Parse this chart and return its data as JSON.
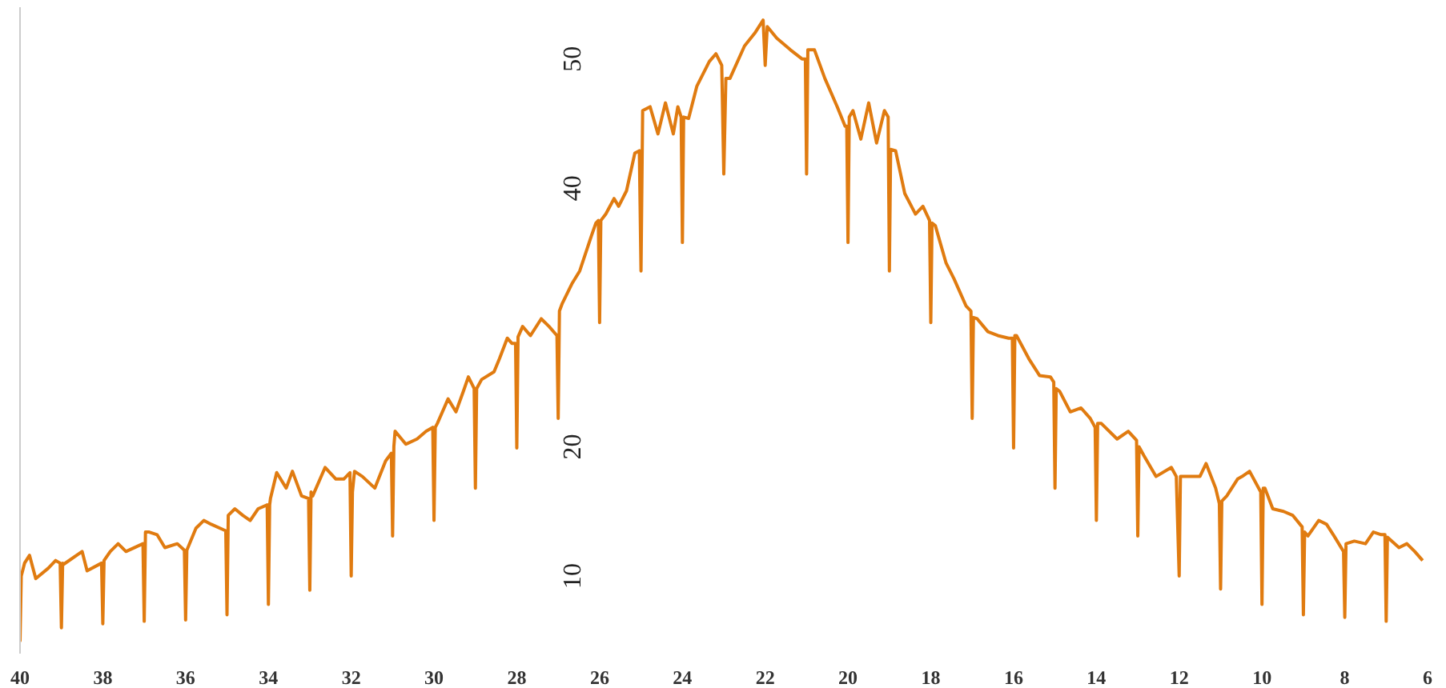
{
  "chart_data": {
    "type": "line",
    "color": "#e07b10",
    "xlim": [
      40,
      6
    ],
    "xticks": [
      40,
      38,
      36,
      34,
      32,
      30,
      28,
      26,
      24,
      22,
      20,
      18,
      16,
      14,
      12,
      10,
      8,
      6
    ],
    "ylim": [
      4,
      54
    ],
    "yticks": [
      10,
      20,
      40,
      50
    ],
    "x": [
      40.0,
      40.0,
      39.97,
      39.89,
      39.77,
      39.62,
      39.32,
      39.14,
      39.03,
      39.0,
      38.97,
      38.95,
      38.5,
      38.38,
      38.03,
      38.0,
      37.97,
      37.82,
      37.63,
      37.44,
      37.03,
      37.0,
      36.97,
      36.88,
      36.69,
      36.5,
      36.2,
      36.03,
      36.0,
      35.97,
      35.75,
      35.56,
      35.38,
      35.03,
      35.0,
      34.97,
      34.81,
      34.62,
      34.44,
      34.25,
      34.03,
      34.0,
      33.97,
      33.95,
      33.8,
      33.57,
      33.42,
      33.2,
      33.03,
      33.0,
      32.97,
      32.93,
      32.63,
      32.37,
      32.18,
      32.03,
      32.0,
      31.97,
      31.92,
      31.73,
      31.43,
      31.17,
      31.03,
      31.0,
      30.97,
      30.94,
      30.68,
      30.41,
      30.19,
      30.03,
      30.0,
      29.97,
      29.92,
      29.66,
      29.47,
      29.29,
      29.17,
      29.03,
      29.0,
      28.97,
      28.85,
      28.55,
      28.42,
      28.23,
      28.12,
      28.03,
      28.0,
      27.97,
      27.86,
      27.67,
      27.41,
      27.22,
      27.03,
      27.0,
      26.97,
      26.9,
      26.67,
      26.48,
      26.2,
      26.09,
      26.03,
      26.0,
      25.97,
      25.85,
      25.65,
      25.54,
      25.35,
      25.15,
      25.04,
      25.0,
      24.96,
      24.78,
      24.59,
      24.41,
      24.22,
      24.11,
      24.03,
      24.0,
      23.97,
      23.85,
      23.65,
      23.35,
      23.19,
      23.05,
      23.0,
      22.95,
      22.85,
      22.5,
      22.25,
      22.05,
      22.0,
      21.95,
      21.72,
      21.39,
      21.11,
      21.03,
      21.0,
      20.97,
      20.81,
      20.56,
      20.26,
      20.07,
      20.03,
      20.0,
      19.97,
      19.88,
      19.69,
      19.5,
      19.31,
      19.12,
      19.03,
      19.0,
      18.97,
      18.85,
      18.63,
      18.37,
      18.19,
      18.03,
      18.0,
      17.97,
      17.89,
      17.63,
      17.44,
      17.15,
      17.03,
      17.0,
      16.97,
      16.88,
      16.62,
      16.38,
      16.12,
      16.03,
      16.0,
      15.97,
      15.93,
      15.63,
      15.37,
      15.11,
      15.03,
      15.0,
      14.97,
      14.89,
      14.63,
      14.37,
      14.15,
      14.03,
      14.0,
      13.97,
      13.88,
      13.5,
      13.23,
      13.03,
      13.0,
      12.97,
      12.85,
      12.56,
      12.19,
      12.07,
      12.0,
      11.97,
      11.81,
      11.5,
      11.35,
      11.12,
      11.03,
      11.0,
      10.97,
      10.85,
      10.59,
      10.48,
      10.3,
      10.03,
      10.0,
      9.97,
      9.93,
      9.74,
      9.48,
      9.26,
      9.03,
      9.0,
      8.97,
      8.89,
      8.63,
      8.44,
      8.26,
      8.03,
      8.0,
      7.97,
      7.77,
      7.5,
      7.31,
      7.12,
      7.03,
      7.0,
      6.97,
      6.69,
      6.5,
      6.31,
      6.12
    ],
    "values": [
      9.5,
      5.0,
      10.0,
      11.0,
      11.6,
      9.8,
      10.6,
      11.2,
      11.0,
      6.0,
      11.0,
      10.9,
      11.9,
      10.4,
      11.0,
      6.3,
      11.2,
      11.9,
      12.5,
      11.9,
      12.5,
      6.5,
      13.4,
      13.4,
      13.2,
      12.2,
      12.5,
      12.0,
      6.6,
      12.0,
      13.7,
      14.3,
      14.0,
      13.5,
      7.0,
      14.7,
      15.2,
      14.7,
      14.3,
      15.2,
      15.5,
      7.8,
      15.5,
      16.0,
      18.0,
      16.8,
      18.1,
      16.2,
      16.0,
      8.9,
      16.5,
      16.2,
      18.4,
      17.5,
      17.5,
      18.0,
      10.0,
      16.5,
      18.1,
      17.7,
      16.8,
      18.9,
      19.5,
      13.1,
      20.0,
      21.2,
      20.2,
      20.6,
      21.2,
      21.5,
      14.3,
      21.5,
      21.8,
      23.7,
      22.7,
      24.3,
      25.4,
      24.5,
      16.8,
      24.5,
      25.2,
      25.8,
      26.8,
      28.4,
      28.0,
      28.0,
      19.9,
      28.5,
      29.3,
      28.6,
      29.9,
      29.3,
      28.6,
      22.2,
      30.5,
      31.1,
      32.6,
      33.6,
      36.3,
      37.3,
      37.5,
      29.6,
      37.5,
      38.0,
      39.2,
      38.6,
      39.8,
      42.7,
      42.9,
      33.6,
      46.0,
      46.3,
      44.2,
      46.6,
      44.2,
      46.3,
      45.5,
      35.8,
      45.5,
      45.4,
      47.9,
      49.8,
      50.4,
      49.5,
      41.1,
      48.5,
      48.5,
      51.0,
      52.0,
      53.0,
      49.5,
      52.5,
      51.6,
      50.7,
      50.0,
      50.0,
      41.1,
      50.7,
      50.7,
      48.5,
      46.3,
      44.8,
      44.8,
      35.8,
      45.5,
      46.0,
      43.8,
      46.6,
      43.5,
      46.0,
      45.5,
      33.6,
      43.0,
      42.9,
      39.6,
      38.0,
      38.6,
      37.5,
      29.6,
      37.3,
      37.1,
      34.2,
      33.0,
      30.9,
      30.5,
      22.2,
      30.0,
      29.9,
      28.9,
      28.6,
      28.4,
      28.4,
      19.9,
      28.6,
      28.6,
      26.8,
      25.5,
      25.4,
      25.0,
      16.8,
      24.5,
      24.3,
      22.7,
      23.0,
      22.2,
      21.5,
      14.3,
      21.8,
      21.8,
      20.6,
      21.2,
      20.5,
      13.1,
      20.0,
      19.3,
      17.7,
      18.4,
      17.7,
      10.0,
      17.7,
      17.7,
      17.7,
      18.7,
      16.8,
      15.6,
      9.0,
      15.8,
      16.2,
      17.5,
      17.7,
      18.1,
      16.5,
      7.8,
      16.8,
      16.8,
      15.2,
      15.0,
      14.7,
      13.8,
      7.0,
      13.4,
      13.1,
      14.3,
      14.0,
      13.1,
      11.9,
      6.8,
      12.5,
      12.7,
      12.5,
      13.4,
      13.2,
      13.2,
      6.5,
      13.0,
      12.2,
      12.5,
      11.9,
      11.2
    ]
  }
}
